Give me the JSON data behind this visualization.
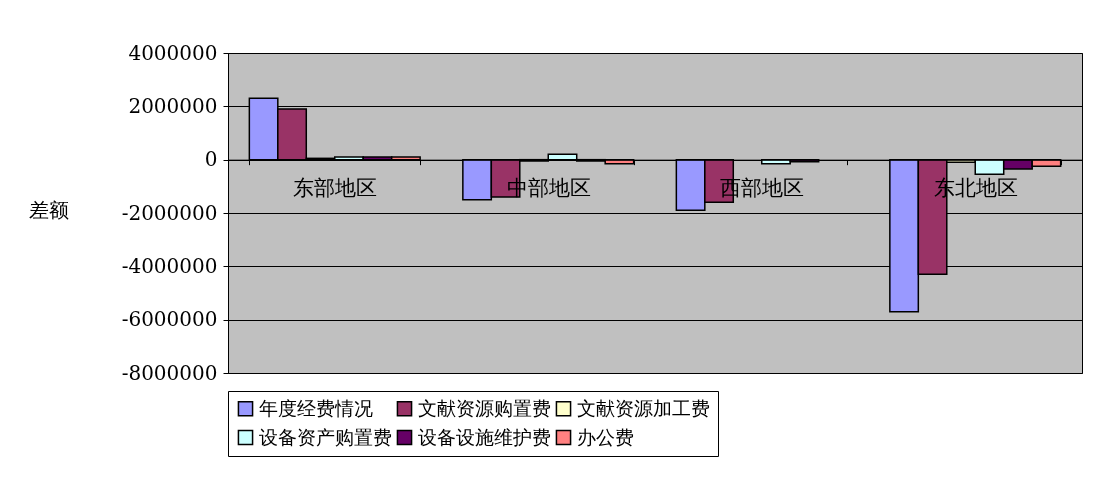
{
  "chart_data": {
    "type": "bar",
    "ylabel": "差额",
    "categories": [
      "东部地区",
      "中部地区",
      "西部地区",
      "东北地区"
    ],
    "series": [
      {
        "name": "年度经费情况",
        "color": "#9999ff",
        "values": [
          2300000,
          -1500000,
          -1900000,
          -5700000
        ]
      },
      {
        "name": "文献资源购置费",
        "color": "#993366",
        "values": [
          1900000,
          -1400000,
          -1600000,
          -4300000
        ]
      },
      {
        "name": "文献资源加工费",
        "color": "#ffffcc",
        "values": [
          50000,
          -50000,
          null,
          -100000
        ]
      },
      {
        "name": "设备资产购置费",
        "color": "#ccffff",
        "values": [
          100000,
          200000,
          -150000,
          -550000
        ]
      },
      {
        "name": "设备设施维护费",
        "color": "#660066",
        "values": [
          100000,
          -50000,
          -80000,
          -350000
        ]
      },
      {
        "name": "办公费",
        "color": "#ff8080",
        "values": [
          100000,
          -150000,
          null,
          -250000
        ]
      }
    ],
    "ylim": [
      -8000000,
      4000000
    ],
    "yticks": [
      -8000000,
      -6000000,
      -4000000,
      -2000000,
      0,
      2000000,
      4000000
    ],
    "grid": "y",
    "legend": "bottom"
  }
}
